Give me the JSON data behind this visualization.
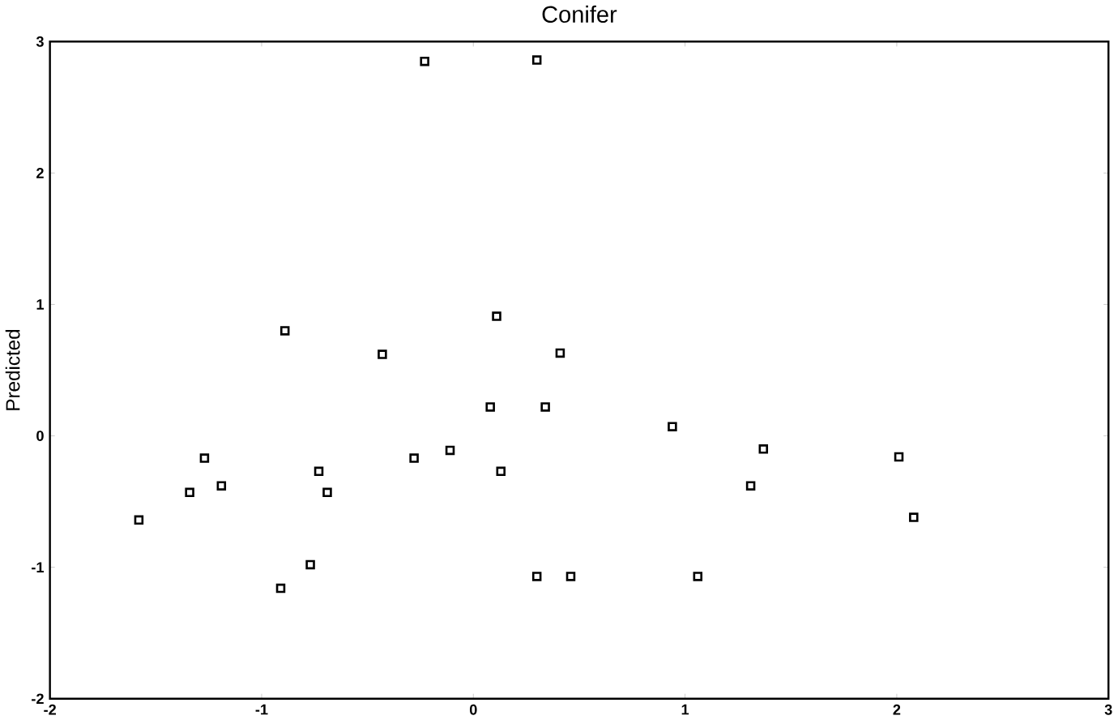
{
  "chart_data": {
    "type": "scatter",
    "title": "Conifer",
    "ylabel": "Predicted",
    "marker": "square",
    "grid": false,
    "xlim": [
      -2,
      3
    ],
    "xticks": [
      -2,
      -1,
      0,
      1,
      2,
      3
    ],
    "ylim": [
      -2,
      3
    ],
    "yticks": [
      -2,
      -1,
      0,
      1,
      2,
      3
    ],
    "series": [
      {
        "color": "#000000",
        "x": [
          -0.23,
          0.3,
          -0.89,
          0.11,
          -0.43,
          0.41,
          -1.58,
          -1.34,
          -1.27,
          -1.19,
          -0.91,
          -0.77,
          -0.73,
          -0.69,
          -0.28,
          -0.11,
          0.08,
          0.34,
          0.13,
          0.3,
          0.46,
          0.94,
          1.06,
          1.37,
          1.31,
          2.01,
          2.08
        ],
        "values": [
          2.85,
          2.86,
          0.8,
          0.91,
          0.62,
          0.63,
          -0.64,
          -0.43,
          -0.17,
          -0.38,
          -1.16,
          -0.98,
          -0.27,
          -0.43,
          -0.17,
          -0.11,
          0.22,
          0.22,
          -0.27,
          -1.07,
          -1.07,
          0.07,
          -1.07,
          -0.1,
          -0.38,
          -0.16,
          -0.62
        ]
      }
    ]
  }
}
